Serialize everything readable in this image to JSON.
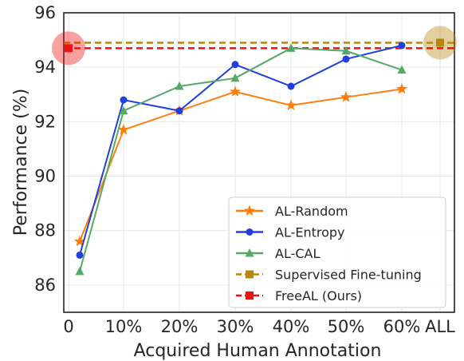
{
  "chart_data": {
    "type": "line",
    "xlabel": "Acquired Human Annotation",
    "ylabel": "Performance (%)",
    "ylim": [
      85,
      96
    ],
    "yticks": [
      86,
      88,
      90,
      92,
      94,
      96
    ],
    "xticks": [
      "0",
      "10%",
      "20%",
      "30%",
      "40%",
      "50%",
      "60%",
      "ALL"
    ],
    "grid": true,
    "legend_position": "lower-right",
    "series": [
      {
        "name": "AL-Random",
        "color": "#ff7f0e",
        "marker": "star",
        "points": [
          {
            "x": "2%",
            "y": 87.6
          },
          {
            "x": "10%",
            "y": 91.7
          },
          {
            "x": "20%",
            "y": 92.4
          },
          {
            "x": "30%",
            "y": 93.1
          },
          {
            "x": "40%",
            "y": 92.6
          },
          {
            "x": "50%",
            "y": 92.9
          },
          {
            "x": "60%",
            "y": 93.2
          }
        ]
      },
      {
        "name": "AL-Entropy",
        "color": "#1f3fe0",
        "marker": "circle",
        "points": [
          {
            "x": "2%",
            "y": 87.1
          },
          {
            "x": "10%",
            "y": 92.8
          },
          {
            "x": "20%",
            "y": 92.4
          },
          {
            "x": "30%",
            "y": 94.1
          },
          {
            "x": "40%",
            "y": 93.3
          },
          {
            "x": "50%",
            "y": 94.3
          },
          {
            "x": "60%",
            "y": 94.8
          }
        ]
      },
      {
        "name": "AL-CAL",
        "color": "#55a868",
        "marker": "triangle",
        "points": [
          {
            "x": "2%",
            "y": 86.5
          },
          {
            "x": "10%",
            "y": 92.4
          },
          {
            "x": "20%",
            "y": 93.3
          },
          {
            "x": "30%",
            "y": 93.6
          },
          {
            "x": "40%",
            "y": 94.7
          },
          {
            "x": "50%",
            "y": 94.6
          },
          {
            "x": "60%",
            "y": 93.9
          }
        ]
      },
      {
        "name": "Supervised Fine-tuning",
        "color": "#b8860b",
        "marker": "square",
        "style": "dashed",
        "value": 94.9,
        "highlight_at": "ALL"
      },
      {
        "name": "FreeAL (Ours)",
        "color": "#ee1111",
        "marker": "square",
        "style": "dashed",
        "value": 94.7,
        "highlight_at": "0"
      }
    ]
  }
}
